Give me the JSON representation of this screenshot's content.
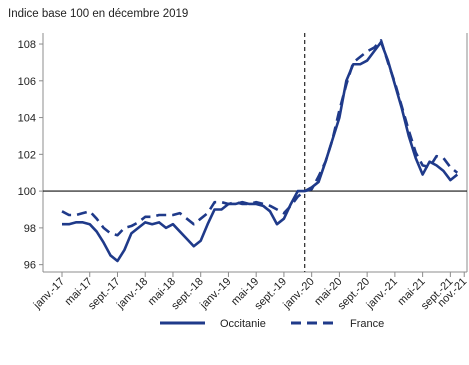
{
  "chart_data": {
    "type": "line",
    "title": "Indice base 100 en décembre 2019",
    "xlabel": "",
    "ylabel": "",
    "ylim": [
      95.6,
      108.6
    ],
    "yticks": [
      96,
      98,
      100,
      102,
      104,
      106,
      108
    ],
    "xtick_labels": [
      "janv.-17",
      "mai-17",
      "sept.-17",
      "janv.-18",
      "mai-18",
      "sept.-18",
      "janv.-19",
      "mai-19",
      "sept.-19",
      "janv.-20",
      "mai-20",
      "sept.-20",
      "janv.-21",
      "mai-21",
      "sept.-21",
      "nov.-21"
    ],
    "x_start": "2017-01",
    "x_end": "2021-11",
    "reference_line": 100,
    "vertical_marker": "2019-12",
    "grid": false,
    "legend_position": "bottom",
    "series": [
      {
        "name": "Occitanie",
        "style": "solid",
        "color": "#1f3a8a",
        "values": [
          98.2,
          98.2,
          98.3,
          98.3,
          98.2,
          97.8,
          97.2,
          96.5,
          96.2,
          96.8,
          97.7,
          98.0,
          98.3,
          98.2,
          98.3,
          98.0,
          98.2,
          97.8,
          97.4,
          97.0,
          97.3,
          98.2,
          99.0,
          99.0,
          99.3,
          99.3,
          99.4,
          99.3,
          99.3,
          99.2,
          98.9,
          98.2,
          98.5,
          99.3,
          100.0,
          100.0,
          100.2,
          100.5,
          101.6,
          102.8,
          104.0,
          106.0,
          106.9,
          106.9,
          107.1,
          107.6,
          108.1,
          107.1,
          105.8,
          104.5,
          103.0,
          101.8,
          100.9,
          101.6,
          101.4,
          101.1,
          100.6,
          100.9
        ]
      },
      {
        "name": "France",
        "style": "dashed",
        "color": "#1f3a8a",
        "values": [
          98.9,
          98.7,
          98.7,
          98.8,
          98.9,
          98.5,
          98.0,
          97.7,
          97.6,
          98.0,
          98.1,
          98.3,
          98.6,
          98.6,
          98.7,
          98.7,
          98.7,
          98.8,
          98.5,
          98.2,
          98.5,
          98.8,
          99.4,
          99.4,
          99.3,
          99.4,
          99.3,
          99.3,
          99.4,
          99.3,
          99.2,
          99.0,
          98.8,
          99.2,
          99.7,
          100.0,
          100.1,
          100.8,
          101.6,
          102.8,
          104.4,
          105.8,
          107.0,
          107.3,
          107.6,
          107.8,
          108.2,
          107.0,
          105.9,
          104.6,
          103.3,
          102.1,
          101.4,
          101.3,
          101.9,
          101.8,
          101.3,
          101.0
        ]
      }
    ]
  }
}
